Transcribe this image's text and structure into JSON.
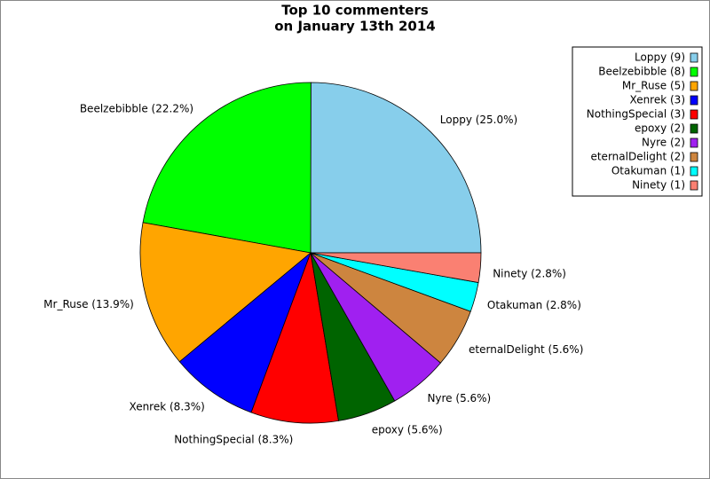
{
  "chart_data": {
    "type": "pie",
    "title": [
      "Top 10 commenters",
      "on January 13th 2014"
    ],
    "categories": [
      "Loppy (9)",
      "Beelzebibble (8)",
      "Mr_Ruse (5)",
      "Xenrek (3)",
      "NothingSpecial (3)",
      "epoxy (2)",
      "Nyre (2)",
      "eternalDelight (2)",
      "Otakuman (1)",
      "Ninety (1)"
    ],
    "values": [
      25.0,
      22.2,
      13.9,
      8.3,
      8.3,
      5.6,
      5.6,
      5.6,
      2.8,
      2.8
    ],
    "value_labels": [
      "Loppy (25.0%)",
      "Beelzebibble (22.2%)",
      "Mr_Ruse (13.9%)",
      "Xenrek (8.3%)",
      "NothingSpecial (8.3%)",
      "epoxy (5.6%)",
      "Nyre (5.6%)",
      "eternalDelight (5.6%)",
      "Otakuman (2.8%)",
      "Ninety (2.8%)"
    ],
    "colors": [
      "#87ceeb",
      "#00ff00",
      "#ffa500",
      "#0000ff",
      "#ff0000",
      "#006400",
      "#a020f0",
      "#cd853f",
      "#00ffff",
      "#fa8072"
    ],
    "legend": "upper right"
  }
}
